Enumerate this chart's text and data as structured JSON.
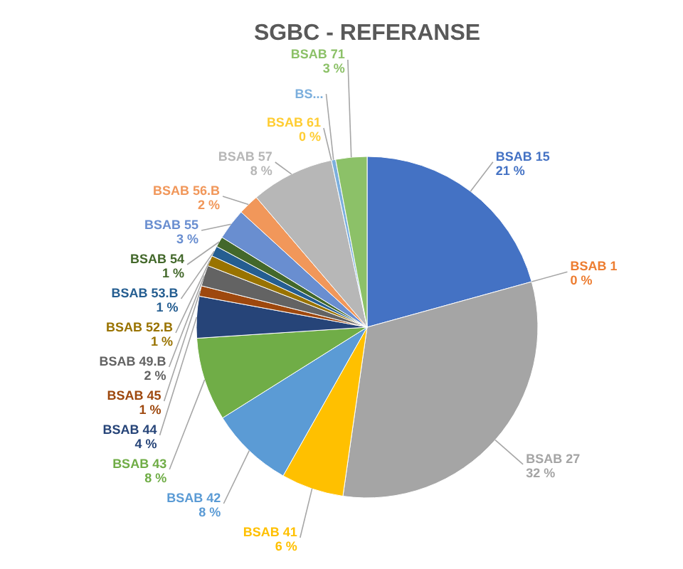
{
  "chart_data": {
    "type": "pie",
    "title": "SGBC - REFERANSE",
    "categories": [
      "BSAB 15",
      "BSAB 1",
      "BSAB 27",
      "BSAB 41",
      "BSAB 42",
      "BSAB 43",
      "BSAB 44",
      "BSAB 45",
      "BSAB 49.B",
      "BSAB 52.B",
      "BSAB 53.B",
      "BSAB 54",
      "BSAB 55",
      "BSAB 56.B",
      "BSAB 57",
      "BSAB 61",
      "BS...",
      "BSAB 71"
    ],
    "values": [
      21,
      0,
      32,
      6,
      8,
      8,
      4,
      1,
      2,
      1,
      1,
      1,
      3,
      2,
      8,
      0,
      0.4,
      3
    ],
    "value_labels": [
      "21 %",
      "0 %",
      "32 %",
      "6 %",
      "8 %",
      "8 %",
      "4 %",
      "1 %",
      "2 %",
      "1 %",
      "1 %",
      "1 %",
      "3 %",
      "2 %",
      "8 %",
      "0 %",
      null,
      "3 %"
    ],
    "colors": [
      "#4472c4",
      "#ed7d31",
      "#a5a5a5",
      "#ffc000",
      "#5b9bd5",
      "#70ad47",
      "#264478",
      "#9e480e",
      "#636363",
      "#997300",
      "#255e91",
      "#43682b",
      "#698ed0",
      "#f1975a",
      "#b7b7b7",
      "#ffcd33",
      "#7cafdd",
      "#8cc168"
    ]
  }
}
